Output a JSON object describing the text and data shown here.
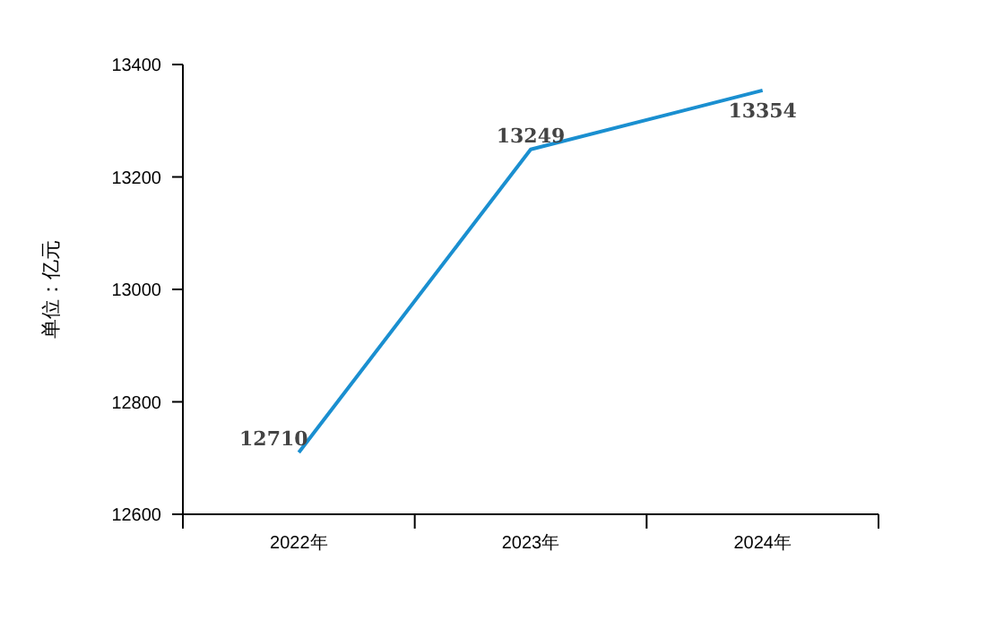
{
  "chart_data": {
    "type": "line",
    "ylabel": "单位：亿元",
    "categories": [
      "2022年",
      "2023年",
      "2024年"
    ],
    "series": [
      {
        "color": "#1a8fd0",
        "values": [
          12710,
          13249,
          13354
        ]
      }
    ],
    "ylim": [
      12600,
      13400
    ],
    "yticks": [
      12600,
      12800,
      13000,
      13200,
      13400
    ],
    "data_labels": true,
    "grid": false,
    "marker": "none"
  }
}
